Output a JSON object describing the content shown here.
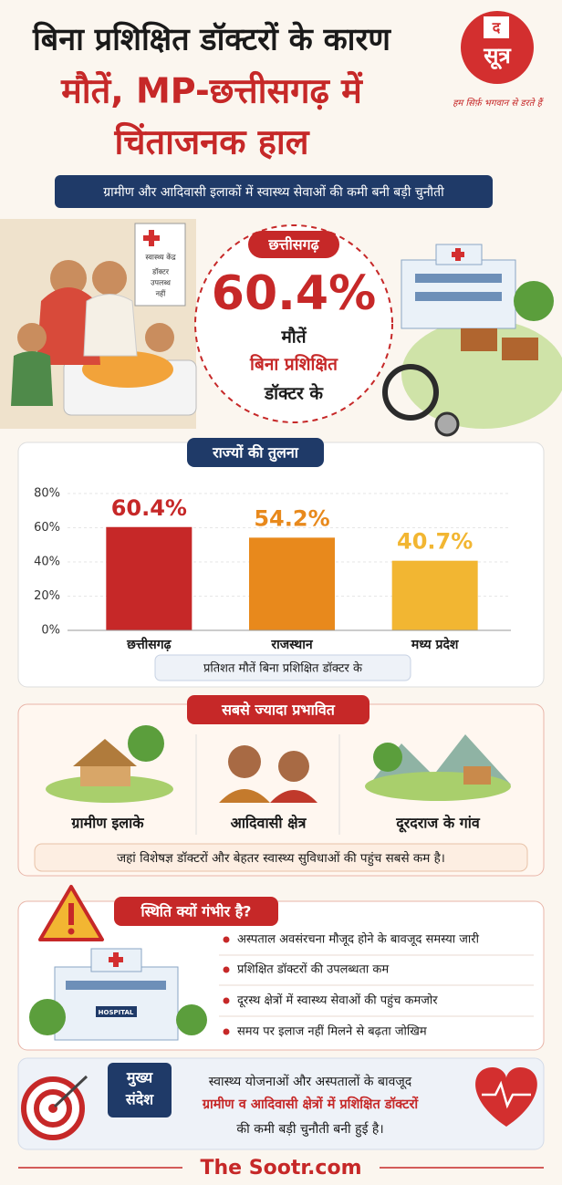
{
  "header": {
    "title_lines": [
      "बिना प्रशिक्षित डॉक्टरों के कारण",
      "मौतें, MP-छत्तीसगढ़ में",
      "चिंताजनक हाल"
    ],
    "logo": {
      "small": "द",
      "main": "सूत्र"
    },
    "tagline": "हम सिर्फ़ भगवान से डरते हैं",
    "subtitle": "ग्रामीण और आदिवासी इलाकों में स्वास्थ्य सेवाओं की कमी बनी बड़ी चुनौती"
  },
  "hero": {
    "sign": [
      "स्वास्थ्य केंद्र",
      "डॉक्टर",
      "उपलब्ध",
      "नहीं"
    ],
    "state": "छत्तीसगढ़",
    "stat": "60.4%",
    "lines": [
      "मौतें",
      "बिना प्रशिक्षित",
      "डॉक्टर के"
    ]
  },
  "chart_data": {
    "type": "bar",
    "title": "राज्यों की तुलना",
    "categories": [
      "छत्तीसगढ़",
      "राजस्थान",
      "मध्य प्रदेश"
    ],
    "values": [
      60.4,
      54.2,
      40.7
    ],
    "value_labels": [
      "60.4%",
      "54.2%",
      "40.7%"
    ],
    "colors": [
      "#c62828",
      "#e8891c",
      "#f2b632"
    ],
    "ylim": [
      0,
      80
    ],
    "yticks": [
      {
        "value": 0,
        "label": "0%"
      },
      {
        "value": 20,
        "label": "20%"
      },
      {
        "value": 40,
        "label": "40%"
      },
      {
        "value": 60,
        "label": "60%"
      },
      {
        "value": 80,
        "label": "80%"
      }
    ],
    "x_label": "प्रतिशत मौतें बिना प्रशिक्षित डॉक्टर के"
  },
  "affected": {
    "title": "सबसे ज्यादा प्रभावित",
    "items": [
      "ग्रामीण इलाके",
      "आदिवासी क्षेत्र",
      "दूरदराज के गांव"
    ],
    "note": "जहां विशेषज्ञ डॉक्टरों और बेहतर स्वास्थ्य सुविधाओं की पहुंच सबसे कम है।"
  },
  "reasons": {
    "title": "स्थिति क्यों गंभीर है?",
    "hospital_sign": "HOSPITAL",
    "items": [
      "अस्पताल अवसंरचना मौजूद होने के बावजूद समस्या जारी",
      "प्रशिक्षित डॉक्टरों की उपलब्धता कम",
      "दूरस्थ क्षेत्रों में स्वास्थ्य सेवाओं की पहुंच कमजोर",
      "समय पर इलाज नहीं मिलने से बढ़ता जोखिम"
    ]
  },
  "message": {
    "label": [
      "मुख्य",
      "संदेश"
    ],
    "lines": [
      "स्वास्थ्य योजनाओं और अस्पतालों के बावजूद",
      "ग्रामीण व आदिवासी क्षेत्रों में प्रशिक्षित डॉक्टरों",
      "की कमी बड़ी चुनौती बनी हुई है।"
    ]
  },
  "footer": "The Sootr.com"
}
